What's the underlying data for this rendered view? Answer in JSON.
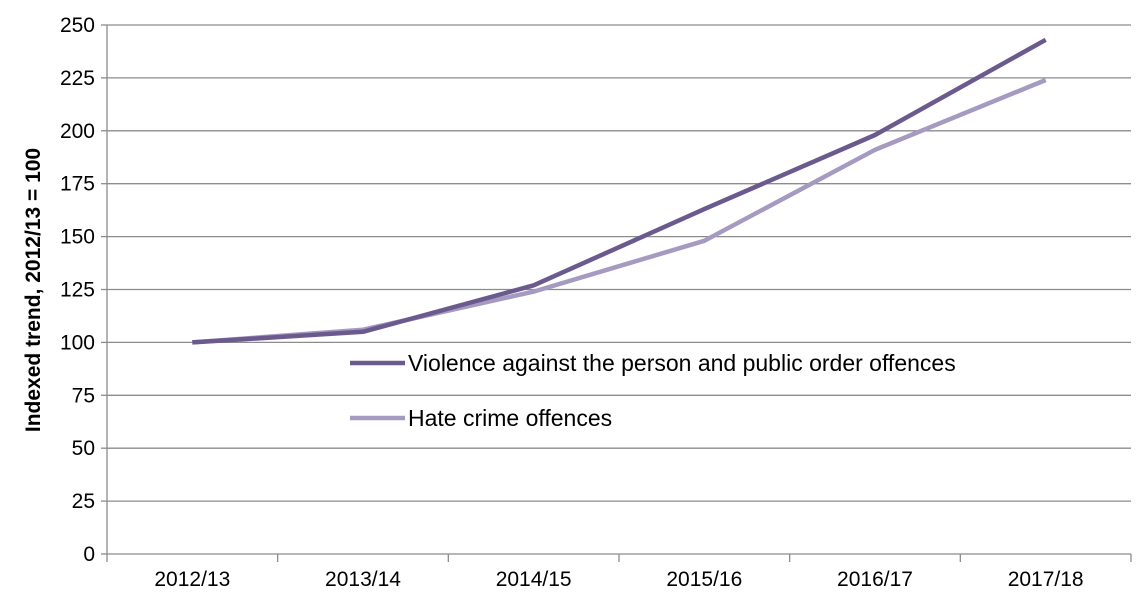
{
  "chart_data": {
    "type": "line",
    "title": "",
    "xlabel": "",
    "ylabel": "Indexed trend, 2012/13 = 100",
    "categories": [
      "2012/13",
      "2013/14",
      "2014/15",
      "2015/16",
      "2016/17",
      "2017/18"
    ],
    "ylim": [
      0,
      250
    ],
    "yticks": [
      0,
      25,
      50,
      75,
      100,
      125,
      150,
      175,
      200,
      225,
      250
    ],
    "grid": "horizontal",
    "legend_position": "center-right",
    "series": [
      {
        "name": "Violence against the person and public order offences",
        "color": "#6b5a8e",
        "values": [
          100,
          105,
          127,
          163,
          198,
          243
        ]
      },
      {
        "name": "Hate crime offences",
        "color": "#a59abf",
        "values": [
          100,
          106,
          124,
          148,
          191,
          224
        ]
      }
    ]
  }
}
